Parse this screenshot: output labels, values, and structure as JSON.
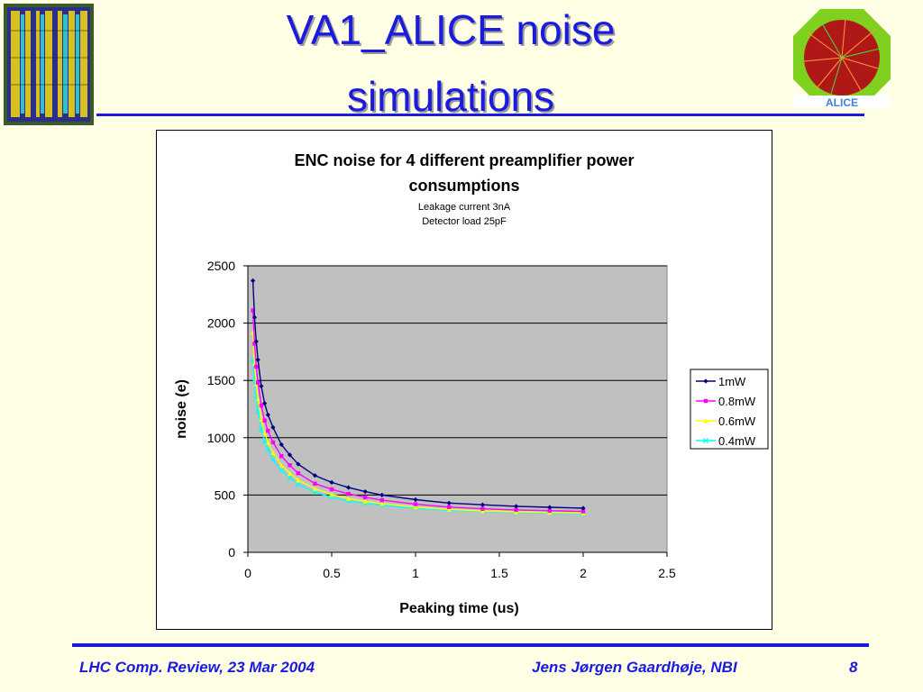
{
  "slide": {
    "title_line1": "VA1_ALICE noise",
    "title_line2": "simulations",
    "footer_left": "LHC Comp. Review, 23 Mar 2004",
    "footer_center": "Jens Jørgen Gaardhøje, NBI",
    "footer_right": "8",
    "accent_color": "#1a1ae0",
    "background_color": "#ffffe5"
  },
  "chart_data": {
    "type": "line",
    "title": "ENC noise for 4 different preamplifier power consumptions",
    "subtitle": [
      "Leakage current 3nA",
      "Detector load 25pF"
    ],
    "xlabel": "Peaking time (us)",
    "ylabel": "noise (e)",
    "xlim": [
      0,
      2.5
    ],
    "ylim": [
      0,
      2500
    ],
    "xticks": [
      "0",
      "0.5",
      "1",
      "1.5",
      "2",
      "2.5"
    ],
    "yticks": [
      "0",
      "500",
      "1000",
      "1500",
      "2000",
      "2500"
    ],
    "grid": "horizontal",
    "plot_background": "#c0c0c0",
    "legend": "right",
    "series": [
      {
        "name": "1mW",
        "color": "#000080",
        "marker": "diamond",
        "x": [
          0.03,
          0.04,
          0.05,
          0.06,
          0.08,
          0.1,
          0.12,
          0.15,
          0.2,
          0.25,
          0.3,
          0.4,
          0.5,
          0.6,
          0.7,
          0.8,
          1.0,
          1.2,
          1.4,
          1.6,
          1.8,
          2.0
        ],
        "y": [
          2370,
          2050,
          1840,
          1680,
          1450,
          1300,
          1200,
          1090,
          940,
          850,
          770,
          670,
          610,
          565,
          530,
          500,
          460,
          430,
          415,
          402,
          393,
          385
        ]
      },
      {
        "name": "0.8mW",
        "color": "#ff00ff",
        "marker": "square",
        "x": [
          0.03,
          0.04,
          0.05,
          0.06,
          0.08,
          0.1,
          0.12,
          0.15,
          0.2,
          0.25,
          0.3,
          0.4,
          0.5,
          0.6,
          0.7,
          0.8,
          1.0,
          1.2,
          1.4,
          1.6,
          1.8,
          2.0
        ],
        "y": [
          2110,
          1820,
          1620,
          1480,
          1280,
          1150,
          1060,
          960,
          840,
          760,
          690,
          600,
          550,
          510,
          480,
          455,
          420,
          395,
          380,
          370,
          363,
          357
        ]
      },
      {
        "name": "0.6mW",
        "color": "#ffff00",
        "marker": "triangle",
        "x": [
          0.03,
          0.04,
          0.05,
          0.06,
          0.08,
          0.1,
          0.12,
          0.15,
          0.2,
          0.25,
          0.3,
          0.4,
          0.5,
          0.6,
          0.7,
          0.8,
          1.0,
          1.2,
          1.4,
          1.6,
          1.8,
          2.0
        ],
        "y": [
          1920,
          1650,
          1470,
          1340,
          1160,
          1040,
          960,
          870,
          760,
          690,
          630,
          555,
          505,
          470,
          445,
          425,
          395,
          375,
          362,
          354,
          348,
          343
        ]
      },
      {
        "name": "0.4mW",
        "color": "#00ffff",
        "marker": "x",
        "x": [
          0.03,
          0.04,
          0.05,
          0.06,
          0.08,
          0.1,
          0.12,
          0.15,
          0.2,
          0.25,
          0.3,
          0.4,
          0.5,
          0.6,
          0.7,
          0.8,
          1.0,
          1.2,
          1.4,
          1.6,
          1.8,
          2.0
        ],
        "y": [
          1680,
          1490,
          1340,
          1230,
          1070,
          970,
          895,
          810,
          715,
          650,
          595,
          525,
          480,
          450,
          428,
          410,
          385,
          367,
          356,
          348,
          342,
          338
        ]
      }
    ]
  }
}
